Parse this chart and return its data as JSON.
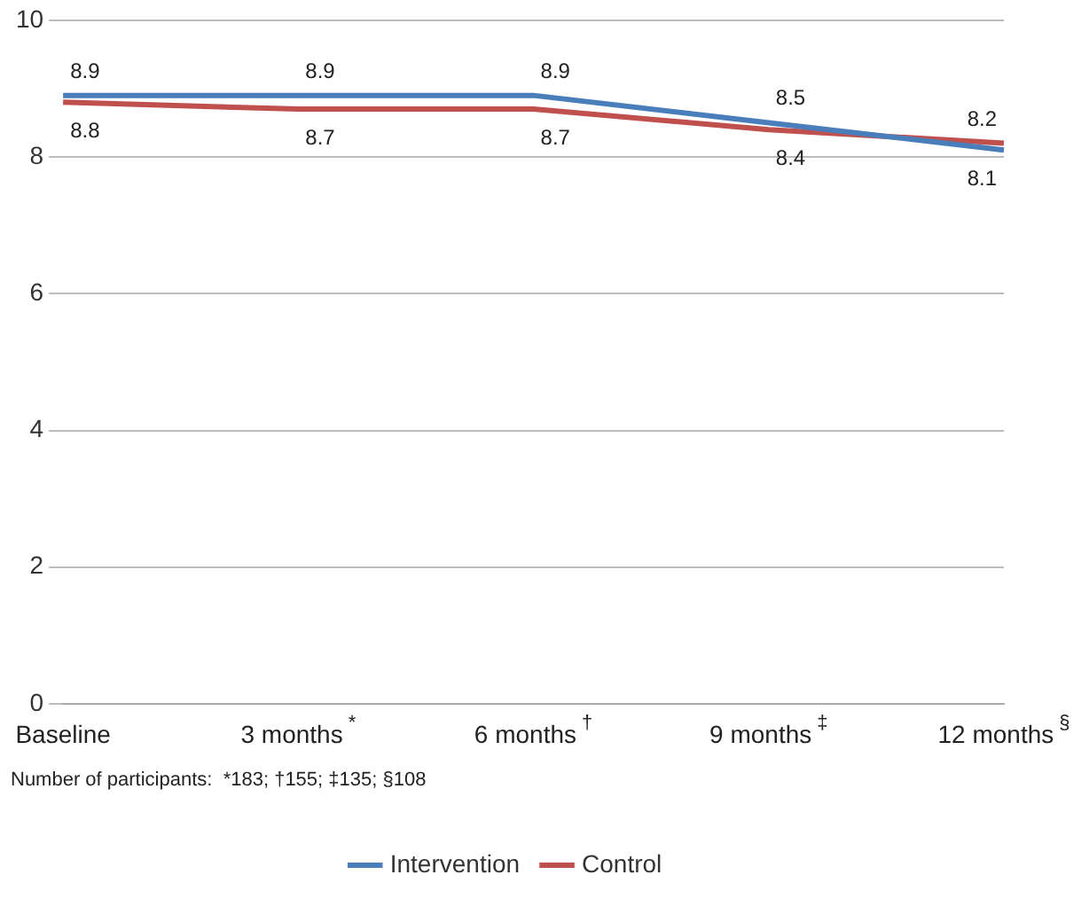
{
  "chart_data": {
    "type": "line",
    "categories": [
      "Baseline",
      "3 months$^{*}$",
      "6 months$^{†}$",
      "9 months$^{‡}$",
      "12 months$^{§}$"
    ],
    "series": [
      {
        "name": "Intervention",
        "color": "#4a7ebb",
        "values": [
          8.9,
          8.9,
          8.9,
          8.5,
          8.1
        ]
      },
      {
        "name": "Control",
        "color": "#c0504d",
        "values": [
          8.8,
          8.7,
          8.7,
          8.4,
          8.2
        ]
      }
    ],
    "ylim": [
      0,
      10
    ],
    "yticks": [
      0,
      2,
      4,
      6,
      8,
      10
    ],
    "grid": "y",
    "legend": "bottom",
    "marker": "none",
    "line_style": "solid",
    "data_labels": true,
    "annotations": [
      "Number of participants:  *183; †155; ‡135; §108"
    ]
  }
}
